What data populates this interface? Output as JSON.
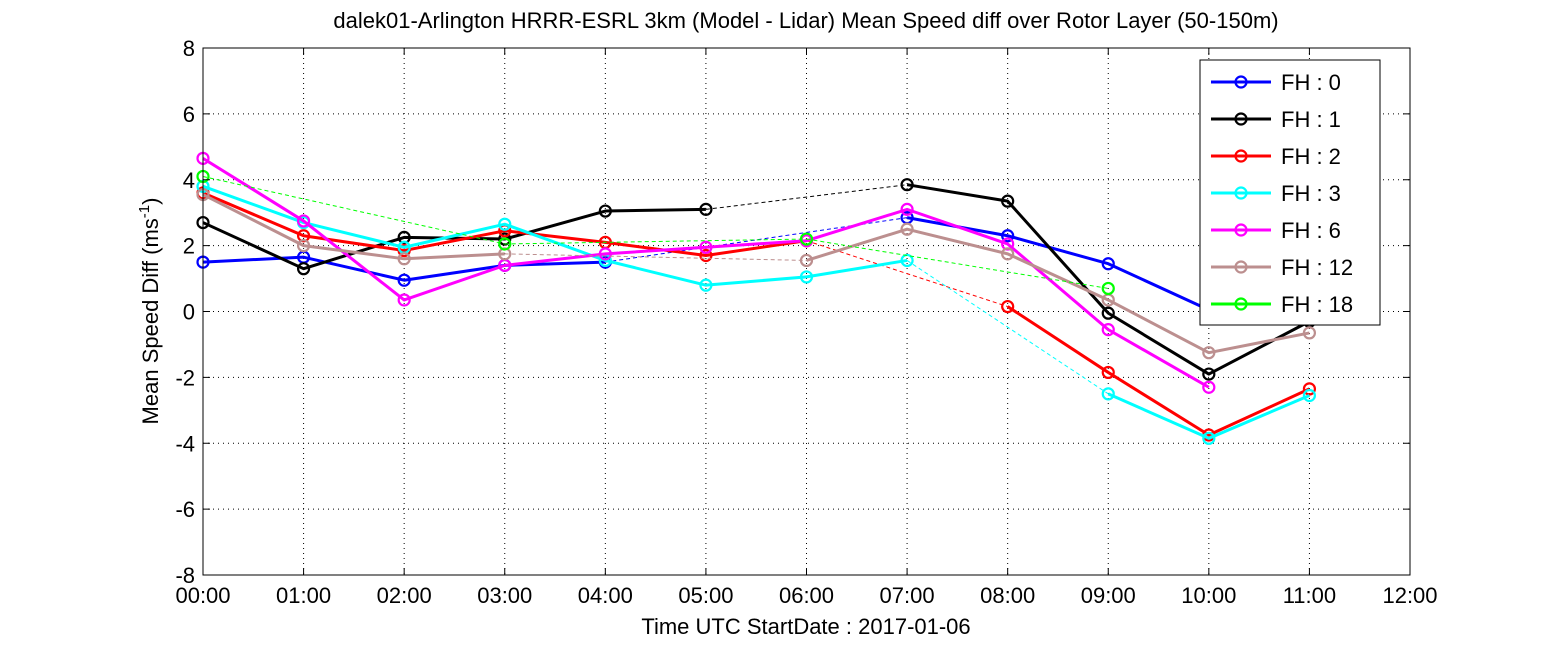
{
  "chart_data": {
    "type": "line",
    "title": "dalek01-Arlington HRRR-ESRL 3km (Model - Lidar) Mean Speed diff over Rotor Layer (50-150m)",
    "xlabel": "Time UTC    StartDate : 2017-01-06",
    "ylabel_main": "Mean Speed Diff (ms",
    "ylabel_sup": "-1",
    "ylabel_close": ")",
    "x_tick_labels": [
      "00:00",
      "01:00",
      "02:00",
      "03:00",
      "04:00",
      "05:00",
      "06:00",
      "07:00",
      "08:00",
      "09:00",
      "10:00",
      "11:00",
      "12:00"
    ],
    "y_tick_labels": [
      "-8",
      "-6",
      "-4",
      "-2",
      "0",
      "2",
      "4",
      "6",
      "8"
    ],
    "xlim": [
      0,
      12
    ],
    "ylim": [
      -8,
      8
    ],
    "x_ticks": [
      0,
      1,
      2,
      3,
      4,
      5,
      6,
      7,
      8,
      9,
      10,
      11,
      12
    ],
    "y_ticks": [
      -8,
      -6,
      -4,
      -2,
      0,
      2,
      4,
      6,
      8
    ],
    "grid": true,
    "legend_position": "top-right",
    "series": [
      {
        "name": "FH : 0",
        "color": "#0000ff",
        "points": [
          [
            0,
            1.5
          ],
          [
            1,
            1.65
          ],
          [
            2,
            0.95
          ],
          [
            3,
            1.4
          ],
          [
            4,
            1.5
          ],
          [
            7,
            2.85
          ],
          [
            8,
            2.3
          ],
          [
            9,
            1.45
          ],
          [
            10,
            0.05
          ]
        ]
      },
      {
        "name": "FH : 1",
        "color": "#000000",
        "points": [
          [
            0,
            2.7
          ],
          [
            1,
            1.3
          ],
          [
            2,
            2.25
          ],
          [
            3,
            2.2
          ],
          [
            4,
            3.05
          ],
          [
            5,
            3.1
          ],
          [
            7,
            3.85
          ],
          [
            8,
            3.35
          ],
          [
            9,
            -0.05
          ],
          [
            10,
            -1.9
          ],
          [
            11,
            -0.3
          ]
        ]
      },
      {
        "name": "FH : 2",
        "color": "#ff0000",
        "points": [
          [
            0,
            3.6
          ],
          [
            1,
            2.3
          ],
          [
            2,
            1.85
          ],
          [
            3,
            2.45
          ],
          [
            4,
            2.1
          ],
          [
            5,
            1.7
          ],
          [
            6,
            2.15
          ],
          [
            8,
            0.15
          ],
          [
            9,
            -1.85
          ],
          [
            10,
            -3.75
          ],
          [
            11,
            -2.35
          ]
        ]
      },
      {
        "name": "FH : 3",
        "color": "#00ffff",
        "points": [
          [
            0,
            3.8
          ],
          [
            1,
            2.7
          ],
          [
            2,
            1.95
          ],
          [
            3,
            2.65
          ],
          [
            4,
            1.55
          ],
          [
            5,
            0.8
          ],
          [
            6,
            1.05
          ],
          [
            7,
            1.55
          ],
          [
            9,
            -2.5
          ],
          [
            10,
            -3.85
          ],
          [
            11,
            -2.55
          ]
        ]
      },
      {
        "name": "FH : 6",
        "color": "#ff00ff",
        "points": [
          [
            0,
            4.65
          ],
          [
            1,
            2.75
          ],
          [
            2,
            0.35
          ],
          [
            3,
            1.4
          ],
          [
            4,
            1.75
          ],
          [
            5,
            1.95
          ],
          [
            6,
            2.15
          ],
          [
            7,
            3.1
          ],
          [
            8,
            2.05
          ],
          [
            9,
            -0.55
          ],
          [
            10,
            -2.3
          ]
        ]
      },
      {
        "name": "FH : 12",
        "color": "#bc8f8f",
        "points": [
          [
            0,
            3.55
          ],
          [
            1,
            2.0
          ],
          [
            2,
            1.6
          ],
          [
            3,
            1.75
          ],
          [
            6,
            1.55
          ],
          [
            7,
            2.5
          ],
          [
            8,
            1.75
          ],
          [
            9,
            0.35
          ],
          [
            10,
            -1.25
          ],
          [
            11,
            -0.65
          ]
        ]
      },
      {
        "name": "FH : 18",
        "color": "#00ff00",
        "points": [
          [
            0,
            4.1
          ],
          [
            3,
            2.05
          ],
          [
            6,
            2.2
          ],
          [
            9,
            0.7
          ]
        ]
      }
    ]
  }
}
